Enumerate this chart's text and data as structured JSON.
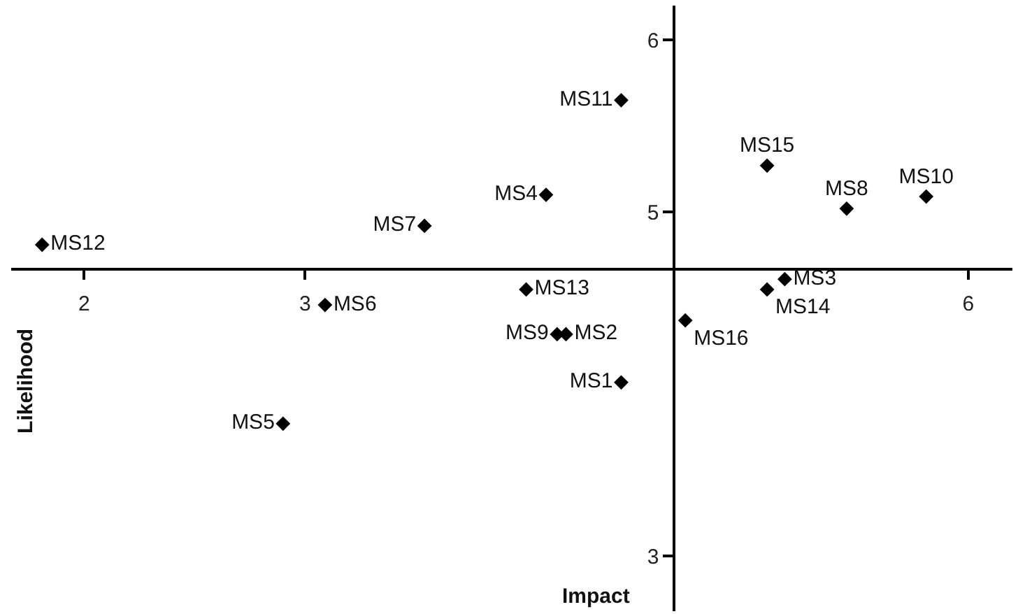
{
  "chart_data": {
    "type": "scatter",
    "xlabel": "Impact",
    "ylabel": "Likelihood",
    "xlim": [
      1.67,
      6.2
    ],
    "ylim": [
      2.68,
      6.2
    ],
    "xticks": [
      2,
      3,
      6
    ],
    "yticks": [
      3,
      5,
      6
    ],
    "marker": "diamond",
    "legend": false,
    "series": [
      {
        "color": "#000000",
        "x": [
          4.43,
          4.18,
          5.17,
          4.09,
          2.9,
          3.09,
          3.54,
          5.45,
          4.14,
          5.81,
          4.43,
          1.81,
          4.0,
          5.09,
          5.09,
          4.72
        ],
        "values": [
          4.01,
          4.29,
          4.61,
          5.1,
          3.77,
          4.46,
          4.92,
          5.02,
          4.29,
          5.09,
          5.65,
          4.81,
          4.55,
          4.55,
          5.27,
          4.37
        ],
        "value_labels": [
          "MS1",
          "MS2",
          "MS3",
          "MS4",
          "MS5",
          "MS6",
          "MS7",
          "MS8",
          "MS9",
          "MS10",
          "MS11",
          "MS12",
          "MS13",
          "MS14",
          "MS15",
          "MS16"
        ]
      }
    ]
  }
}
